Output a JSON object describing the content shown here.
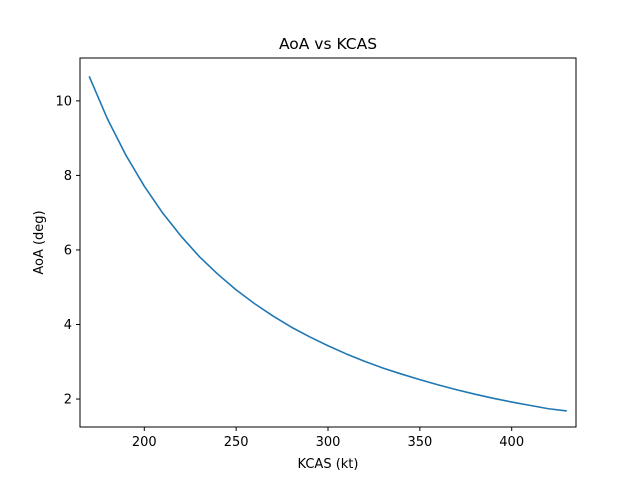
{
  "chart_data": {
    "type": "line",
    "title": "AoA vs KCAS",
    "xlabel": "KCAS (kt)",
    "ylabel": "AoA (deg)",
    "xlim": [
      165,
      435
    ],
    "ylim": [
      1.25,
      11.15
    ],
    "xticks": [
      200,
      250,
      300,
      350,
      400
    ],
    "yticks": [
      2,
      4,
      6,
      8,
      10
    ],
    "grid": false,
    "legend": "none",
    "series": [
      {
        "color": "#1f77b4",
        "x": [
          170,
          180,
          190,
          200,
          210,
          220,
          230,
          240,
          250,
          260,
          270,
          280,
          290,
          300,
          310,
          320,
          330,
          340,
          350,
          360,
          370,
          380,
          390,
          400,
          410,
          420,
          430
        ],
        "y": [
          10.66,
          9.51,
          8.54,
          7.71,
          6.99,
          6.37,
          5.82,
          5.35,
          4.93,
          4.56,
          4.23,
          3.93,
          3.67,
          3.43,
          3.21,
          3.01,
          2.83,
          2.67,
          2.52,
          2.38,
          2.25,
          2.13,
          2.02,
          1.92,
          1.83,
          1.74,
          1.68
        ]
      }
    ]
  }
}
